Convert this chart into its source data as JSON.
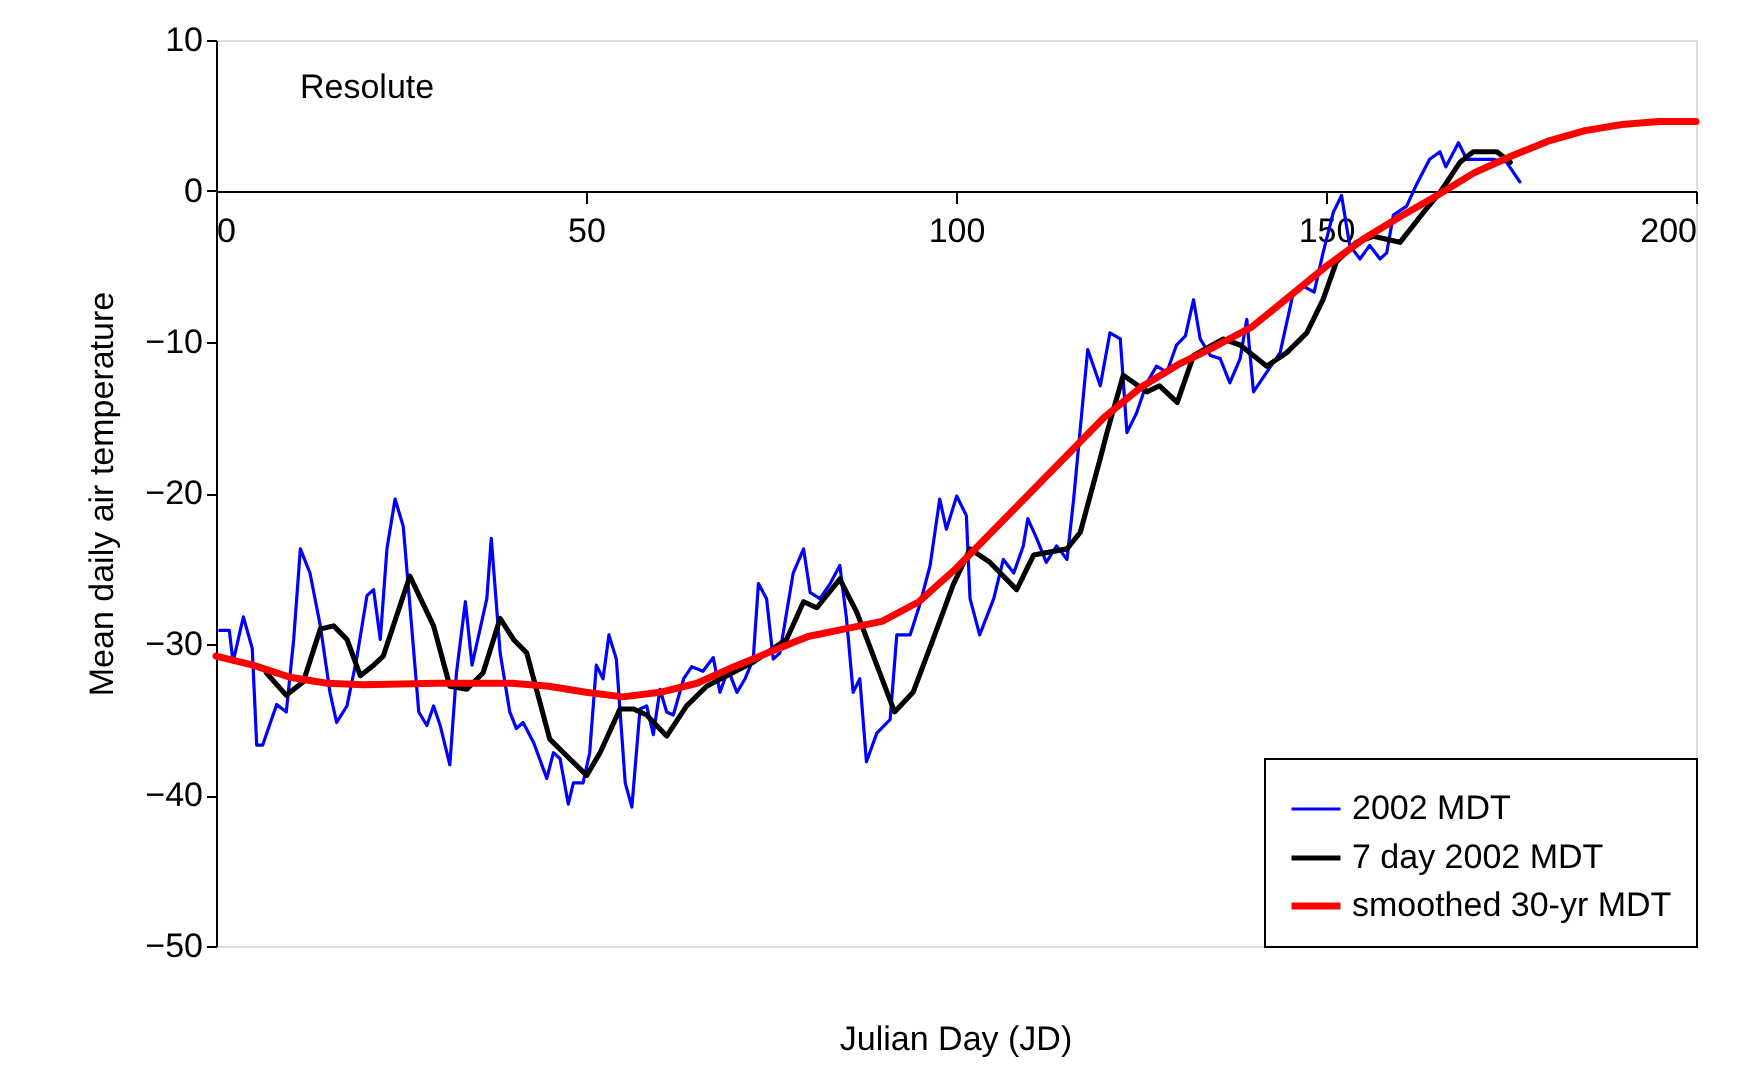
{
  "chart_data": {
    "type": "line",
    "xlabel": "Julian Day (JD)",
    "ylabel": "Mean daily air temperature",
    "annotations": [
      "Resolute"
    ],
    "xlim": [
      0,
      200
    ],
    "xticks": [
      0,
      50,
      100,
      150,
      200
    ],
    "ylim": [
      -50,
      10
    ],
    "yticks": [
      -50,
      -40,
      -30,
      -20,
      -10,
      0,
      10
    ],
    "grid": false,
    "legend": "bottom right",
    "line_style": "solid",
    "marker": "none",
    "series": [
      {
        "name": "2002 MDT",
        "color": "#0000ff",
        "x": [
          0.5,
          1.8,
          2.3,
          3.7,
          4.9,
          5.5,
          6.3,
          8.2,
          9.5,
          10.5,
          11.4,
          12.7,
          14.1,
          15.4,
          16.3,
          17.7,
          19,
          20.4,
          21.3,
          22.2,
          23.1,
          24.2,
          25.3,
          26.5,
          27.4,
          28.5,
          29.4,
          30.3,
          31.6,
          32.5,
          33.7,
          34.6,
          36.6,
          37.2,
          38.4,
          39.7,
          40.6,
          41.5,
          42.9,
          44.7,
          45.6,
          46.5,
          47.6,
          48.3,
          49.6,
          50.5,
          51.4,
          52.3,
          53.1,
          54.1,
          55.3,
          56.2,
          57.3,
          58.2,
          59.1,
          60,
          60.9,
          61.8,
          63.2,
          64.3,
          65.8,
          67.2,
          68.1,
          69.2,
          70.4,
          71.5,
          72.6,
          73.3,
          74.4,
          75.3,
          76.2,
          78,
          79.4,
          80.3,
          81.6,
          83,
          84.3,
          85.2,
          86.1,
          87,
          87.9,
          89.3,
          91.1,
          92,
          93.8,
          95.1,
          96.5,
          97.8,
          98.7,
          100.1,
          101.4,
          101.9,
          103.2,
          105.1,
          106.4,
          107.8,
          109.1,
          109.7,
          110.9,
          112.2,
          113.6,
          115,
          115.9,
          117.8,
          119.5,
          120.8,
          122.2,
          123.1,
          124.4,
          125.8,
          127.1,
          128.5,
          129.8,
          131,
          132.1,
          133,
          134.4,
          135.7,
          137,
          138.4,
          139.3,
          140.2,
          142,
          143.8,
          145.6,
          146.9,
          148.4,
          149.6,
          151,
          152.1,
          153.2,
          154.6,
          155.9,
          157.3,
          158.2,
          159.1,
          160.9,
          162.2,
          164,
          165.4,
          166.2,
          167.9,
          169,
          170.8,
          172.6,
          174.4,
          176.2
        ],
        "values": [
          -29.1,
          -29.1,
          -31.2,
          -28.2,
          -30.3,
          -36.7,
          -36.7,
          -34.0,
          -34.5,
          -29.7,
          -23.7,
          -25.3,
          -28.8,
          -33.2,
          -35.2,
          -34.1,
          -31.0,
          -26.8,
          -26.4,
          -29.7,
          -23.7,
          -20.4,
          -22.2,
          -29.2,
          -34.5,
          -35.4,
          -34.1,
          -35.4,
          -38.0,
          -31.9,
          -27.2,
          -31.4,
          -27.0,
          -23.0,
          -30.6,
          -34.5,
          -35.6,
          -35.2,
          -36.5,
          -38.9,
          -37.2,
          -37.6,
          -40.6,
          -39.2,
          -39.2,
          -37.2,
          -31.4,
          -32.3,
          -29.4,
          -31.0,
          -39.2,
          -40.8,
          -34.3,
          -34.1,
          -36.0,
          -33.0,
          -34.5,
          -34.7,
          -32.3,
          -31.5,
          -31.8,
          -30.9,
          -33.2,
          -31.7,
          -33.2,
          -32.3,
          -31.0,
          -26.0,
          -27.0,
          -31.0,
          -30.6,
          -25.3,
          -23.7,
          -26.6,
          -27.0,
          -26.0,
          -24.8,
          -28.3,
          -33.2,
          -32.3,
          -37.8,
          -35.9,
          -35.0,
          -29.4,
          -29.4,
          -27.4,
          -24.8,
          -20.4,
          -22.4,
          -20.2,
          -21.5,
          -27.0,
          -29.4,
          -27.0,
          -24.4,
          -25.3,
          -23.5,
          -21.7,
          -23.0,
          -24.6,
          -23.5,
          -24.4,
          -20.4,
          -10.5,
          -12.9,
          -9.4,
          -9.8,
          -16.0,
          -14.7,
          -12.7,
          -11.6,
          -12.0,
          -10.2,
          -9.6,
          -7.2,
          -9.8,
          -10.9,
          -11.1,
          -12.7,
          -11.1,
          -8.5,
          -13.3,
          -12.0,
          -10.7,
          -6.7,
          -6.3,
          -6.7,
          -4.1,
          -1.4,
          -0.3,
          -3.6,
          -4.5,
          -3.6,
          -4.5,
          -4.1,
          -1.6,
          -1.0,
          0.4,
          2.1,
          2.6,
          1.6,
          3.2,
          2.1,
          2.1,
          2.1,
          1.9,
          0.6
        ]
      },
      {
        "name": "7 day 2002 MDT",
        "color": "#000000",
        "x": [
          6.8,
          9.5,
          11.8,
          14.1,
          15.9,
          17.7,
          19.5,
          21.3,
          22.6,
          26.2,
          29.4,
          31.6,
          33.9,
          36.1,
          38.4,
          40.2,
          42,
          45.1,
          47.8,
          50.1,
          51.9,
          54.6,
          56.4,
          58.2,
          60.9,
          63.6,
          66.3,
          69,
          72.6,
          74.4,
          77.1,
          79.4,
          81.2,
          84.3,
          86.6,
          89.3,
          91.7,
          94.2,
          96.9,
          99.6,
          101.9,
          104.6,
          108.2,
          110.5,
          115,
          116.8,
          119.5,
          120.4,
          122.6,
          125.8,
          127.5,
          129.9,
          132.1,
          136.1,
          138.4,
          142,
          144.7,
          147.4,
          149.6,
          151.4,
          154.1,
          156.4,
          160,
          163.2,
          165.4,
          168.1,
          169.9,
          173.1,
          174.9
        ],
        "values": [
          -31.9,
          -33.4,
          -32.5,
          -29.0,
          -28.8,
          -29.7,
          -32.1,
          -31.4,
          -30.8,
          -25.5,
          -28.8,
          -32.8,
          -33.0,
          -31.9,
          -28.3,
          -29.7,
          -30.6,
          -36.3,
          -37.6,
          -38.7,
          -37.2,
          -34.3,
          -34.3,
          -34.7,
          -36.1,
          -34.1,
          -32.8,
          -32.1,
          -31.2,
          -30.6,
          -29.7,
          -27.2,
          -27.6,
          -25.7,
          -27.9,
          -31.4,
          -34.5,
          -33.2,
          -29.7,
          -26.1,
          -23.7,
          -24.6,
          -26.4,
          -24.1,
          -23.7,
          -22.6,
          -17.7,
          -16.0,
          -12.2,
          -13.3,
          -12.9,
          -14.0,
          -10.9,
          -9.8,
          -10.2,
          -11.6,
          -10.7,
          -9.4,
          -7.2,
          -4.7,
          -3.4,
          -3.0,
          -3.4,
          -1.4,
          -0.1,
          1.9,
          2.6,
          2.6,
          1.9
        ]
      },
      {
        "name": "smoothed 30-yr MDT",
        "color": "#ff0000",
        "x": [
          0,
          5,
          10,
          15,
          20,
          30,
          40,
          45,
          50,
          55,
          60,
          65,
          70,
          75,
          80,
          85,
          90,
          95,
          100,
          105,
          110,
          115,
          120,
          125,
          130,
          135,
          140,
          145,
          150,
          155,
          160,
          165,
          170,
          175,
          180,
          185,
          190,
          195,
          200
        ],
        "values": [
          -30.8,
          -31.4,
          -32.2,
          -32.6,
          -32.7,
          -32.6,
          -32.6,
          -32.8,
          -33.2,
          -33.5,
          -33.2,
          -32.6,
          -31.5,
          -30.5,
          -29.5,
          -29.0,
          -28.5,
          -27.2,
          -25.0,
          -22.5,
          -20.0,
          -17.5,
          -15.0,
          -13.0,
          -11.5,
          -10.3,
          -9.0,
          -7.0,
          -5.0,
          -3.2,
          -1.7,
          -0.3,
          1.2,
          2.3,
          3.3,
          4.0,
          4.4,
          4.6,
          4.6
        ]
      }
    ]
  }
}
